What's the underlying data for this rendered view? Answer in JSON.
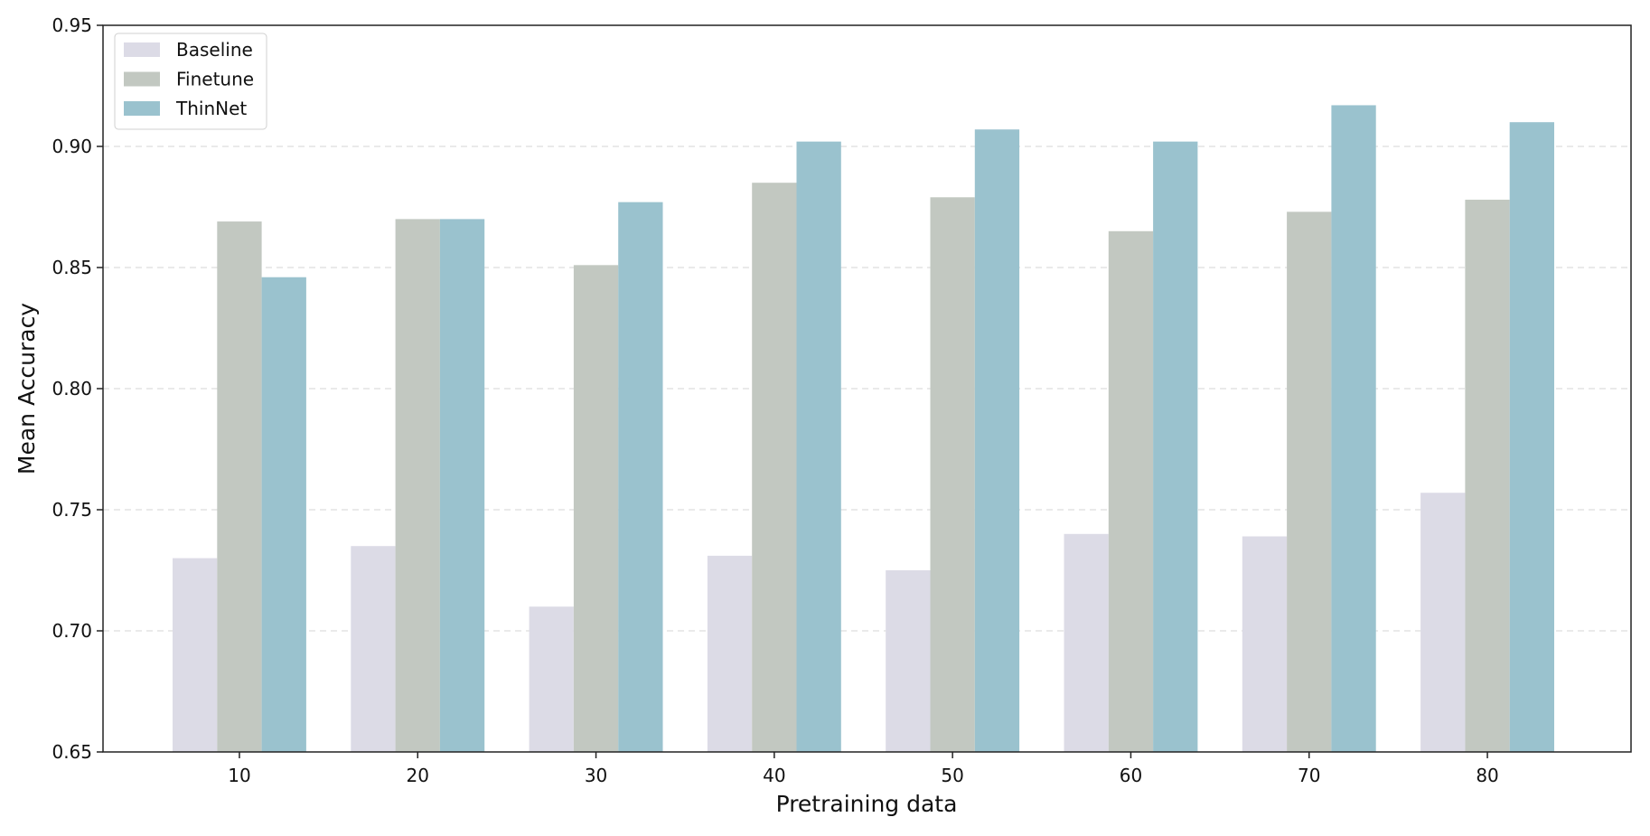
{
  "chart_data": {
    "type": "bar",
    "title": "",
    "xlabel": "Pretraining data",
    "ylabel": "Mean Accuracy",
    "categories": [
      "10",
      "20",
      "30",
      "40",
      "50",
      "60",
      "70",
      "80"
    ],
    "series": [
      {
        "name": "Baseline",
        "color": "#dcdbe6",
        "values": [
          0.73,
          0.735,
          0.71,
          0.731,
          0.725,
          0.74,
          0.739,
          0.757
        ]
      },
      {
        "name": "Finetune",
        "color": "#c2c8c1",
        "values": [
          0.869,
          0.87,
          0.851,
          0.885,
          0.879,
          0.865,
          0.873,
          0.878
        ]
      },
      {
        "name": "ThinNet",
        "color": "#9ac2ce",
        "values": [
          0.846,
          0.87,
          0.877,
          0.902,
          0.907,
          0.902,
          0.917,
          0.91
        ]
      }
    ],
    "ylim": [
      0.65,
      0.95
    ],
    "yticks": [
      "0.65",
      "0.70",
      "0.75",
      "0.80",
      "0.85",
      "0.90",
      "0.95"
    ],
    "grid": "horizontal dashed",
    "legend": "top-left"
  }
}
